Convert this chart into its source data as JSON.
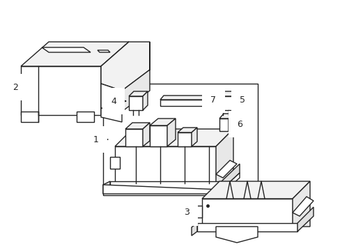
{
  "bg_color": "#ffffff",
  "line_color": "#222222",
  "line_width": 1.0,
  "fig_width": 4.89,
  "fig_height": 3.6,
  "dpi": 100
}
